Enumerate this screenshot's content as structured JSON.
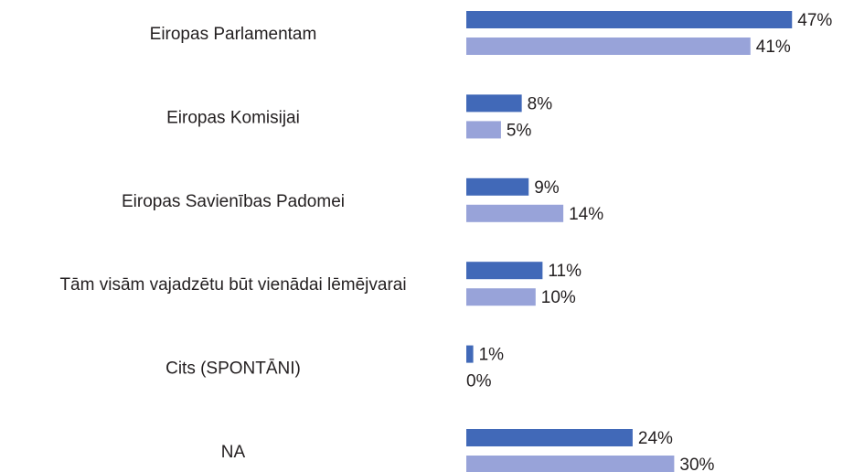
{
  "chart_data": {
    "type": "hbar",
    "categories": [
      "Eiropas Parlamentam",
      "Eiropas Komisijai",
      "Eiropas Savienības Padomei",
      "Tām visām vajadzētu būt vienādai lēmējvarai",
      "Cits (SPONTĀNI)",
      "NA"
    ],
    "series": [
      {
        "color": "#4169b8",
        "values": [
          47,
          8,
          9,
          11,
          1,
          24
        ],
        "value_labels": [
          "47%",
          "8%",
          "9%",
          "11%",
          "1%",
          "24%"
        ]
      },
      {
        "color": "#98a3d9",
        "values": [
          41,
          5,
          14,
          10,
          0,
          30
        ],
        "value_labels": [
          "41%",
          "5%",
          "14%",
          "10%",
          "0%",
          "30%"
        ]
      }
    ]
  }
}
